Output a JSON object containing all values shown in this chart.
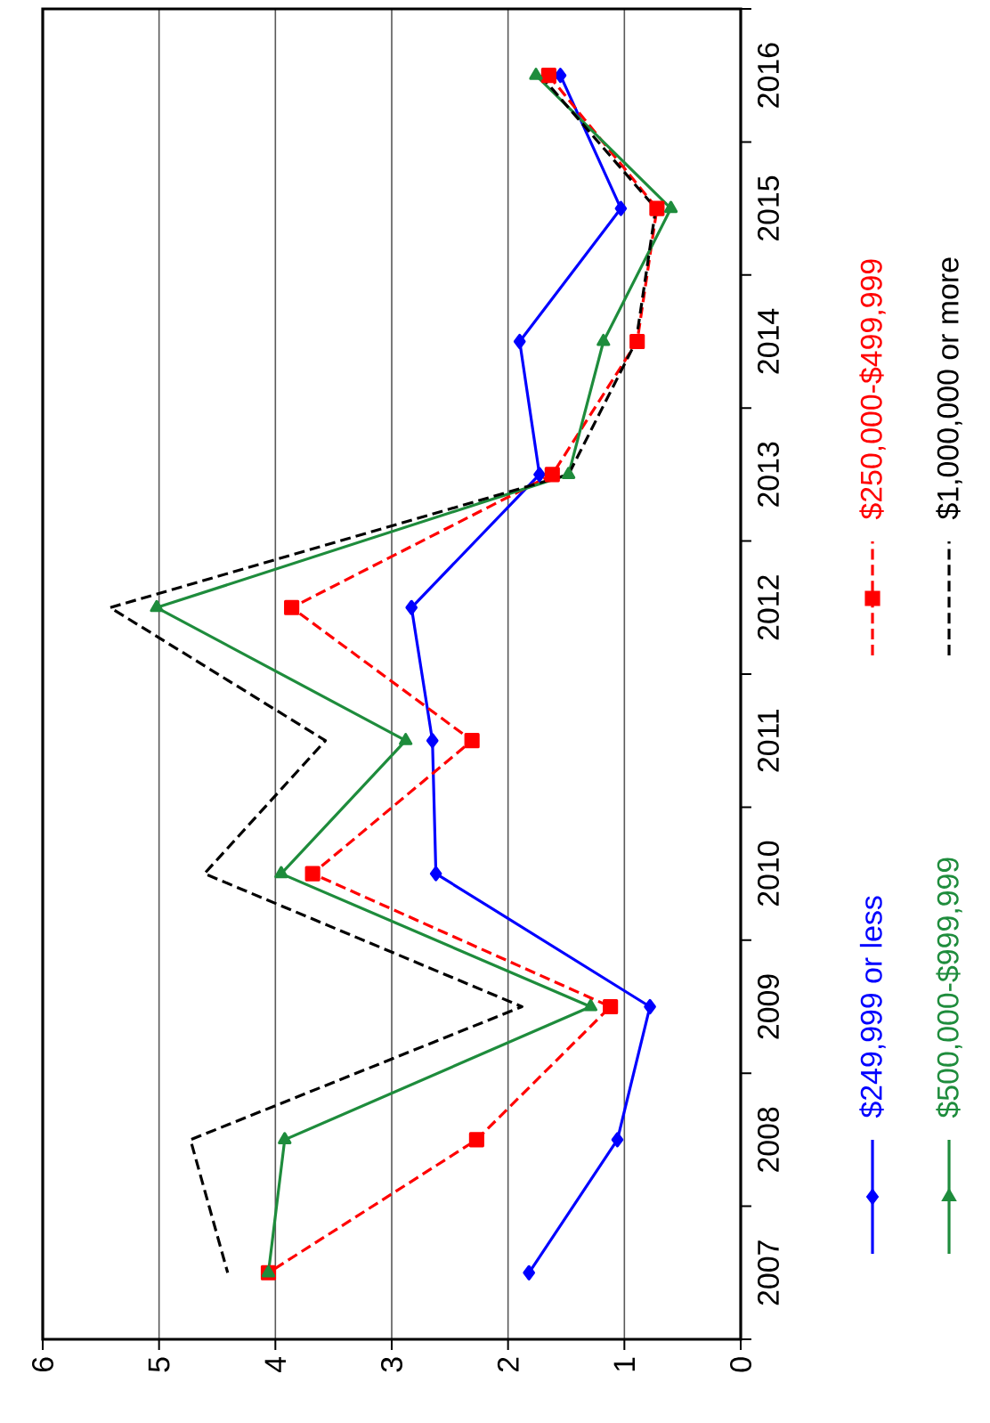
{
  "chart_data": {
    "type": "line",
    "orientation": "horizontal",
    "categories": [
      "2016",
      "2015",
      "2014",
      "2013",
      "2012",
      "2011",
      "2010",
      "2009",
      "2008",
      "2007"
    ],
    "series": [
      {
        "name": "$249,999 or less",
        "color": "#0000ff",
        "marker": "diamond",
        "line_style": "solid",
        "values": [
          1.55,
          1.03,
          1.9,
          1.73,
          2.83,
          2.65,
          2.62,
          0.78,
          1.06,
          1.82
        ]
      },
      {
        "name": "$250,000-$499,999",
        "color": "#ff0000",
        "marker": "square",
        "line_style": "dashed",
        "values": [
          1.65,
          0.72,
          0.89,
          1.62,
          3.86,
          2.31,
          3.68,
          1.12,
          2.27,
          4.06
        ]
      },
      {
        "name": "$500,000-$999,999",
        "color": "#1e8c3c",
        "marker": "triangle",
        "line_style": "solid",
        "values": [
          1.76,
          0.6,
          1.18,
          1.48,
          5.02,
          2.88,
          3.95,
          1.29,
          3.92,
          4.06
        ]
      },
      {
        "name": "$1,000,000 or more",
        "color": "#000000",
        "marker": "none",
        "line_style": "dashed",
        "values": [
          1.72,
          0.73,
          0.9,
          1.48,
          5.42,
          3.57,
          4.61,
          1.88,
          4.73,
          4.41
        ]
      }
    ],
    "xlim": [
      6,
      0
    ],
    "xticks": [
      6,
      5,
      4,
      3,
      2,
      1,
      0
    ],
    "grid": "x",
    "legend": "right"
  }
}
